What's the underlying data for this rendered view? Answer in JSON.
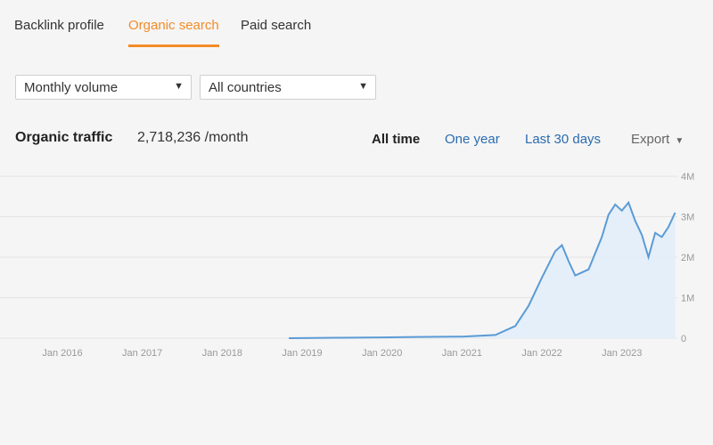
{
  "tabs": [
    {
      "label": "Backlink profile",
      "active": false
    },
    {
      "label": "Organic search",
      "active": true
    },
    {
      "label": "Paid search",
      "active": false
    }
  ],
  "filters": {
    "volume": "Monthly volume",
    "country": "All countries"
  },
  "traffic": {
    "title": "Organic traffic",
    "value": "2,718,236 /month"
  },
  "ranges": {
    "all": "All time",
    "year": "One year",
    "days30": "Last 30 days"
  },
  "export_label": "Export",
  "colors": {
    "accent": "#f28c28",
    "link": "#2b6cb0",
    "line": "#5b9bd5",
    "area": "#e3eefa"
  },
  "chart_data": {
    "type": "area",
    "x_ticks": [
      "Jan 2016",
      "Jan 2017",
      "Jan 2018",
      "Jan 2019",
      "Jan 2020",
      "Jan 2021",
      "Jan 2022",
      "Jan 2023"
    ],
    "y_ticks": [
      "0",
      "1M",
      "2M",
      "3M",
      "4M"
    ],
    "ylim": [
      0,
      4000000
    ],
    "grid": true,
    "series": [
      {
        "points": [
          [
            "2018-11",
            0
          ],
          [
            "2019-06",
            10000
          ],
          [
            "2020-01",
            20000
          ],
          [
            "2020-06",
            30000
          ],
          [
            "2021-01",
            40000
          ],
          [
            "2021-06",
            80000
          ],
          [
            "2021-09",
            300000
          ],
          [
            "2021-11",
            800000
          ],
          [
            "2022-01",
            1500000
          ],
          [
            "2022-03",
            2150000
          ],
          [
            "2022-04",
            2300000
          ],
          [
            "2022-05",
            1900000
          ],
          [
            "2022-06",
            1550000
          ],
          [
            "2022-08",
            1700000
          ],
          [
            "2022-10",
            2500000
          ],
          [
            "2022-11",
            3050000
          ],
          [
            "2022-12",
            3300000
          ],
          [
            "2023-01",
            3150000
          ],
          [
            "2023-02",
            3350000
          ],
          [
            "2023-03",
            2900000
          ],
          [
            "2023-04",
            2550000
          ],
          [
            "2023-05",
            2000000
          ],
          [
            "2023-06",
            2600000
          ],
          [
            "2023-07",
            2500000
          ],
          [
            "2023-08",
            2750000
          ],
          [
            "2023-09",
            3100000
          ]
        ]
      }
    ]
  }
}
